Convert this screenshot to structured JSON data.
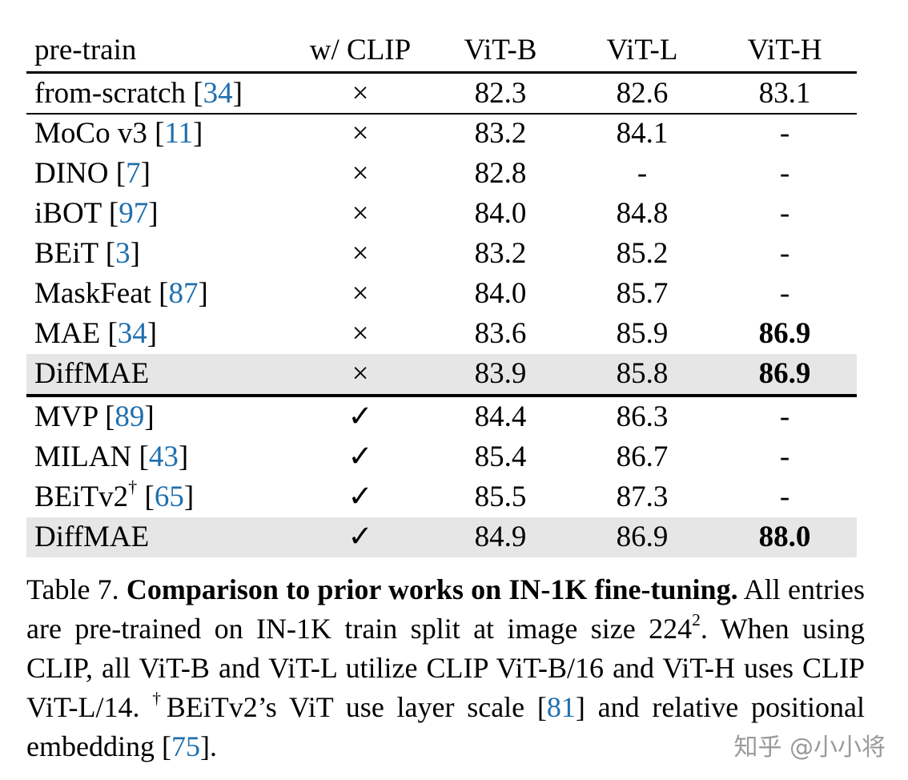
{
  "table": {
    "header": [
      "pre-train",
      "w/ CLIP",
      "ViT-B",
      "ViT-L",
      "ViT-H"
    ],
    "rows": [
      {
        "cells": [
          [
            {
              "text": "from-scratch ["
            },
            {
              "text": "34",
              "style": "cite"
            },
            {
              "text": "]"
            }
          ],
          [
            {
              "text": "×"
            }
          ],
          [
            {
              "text": "82.3"
            }
          ],
          [
            {
              "text": "82.6"
            }
          ],
          [
            {
              "text": "83.1"
            }
          ]
        ],
        "shaded": false,
        "rule_below": "thin"
      },
      {
        "cells": [
          [
            {
              "text": "MoCo v3 ["
            },
            {
              "text": "11",
              "style": "cite"
            },
            {
              "text": "]"
            }
          ],
          [
            {
              "text": "×"
            }
          ],
          [
            {
              "text": "83.2"
            }
          ],
          [
            {
              "text": "84.1"
            }
          ],
          [
            {
              "text": "-"
            }
          ]
        ],
        "shaded": false,
        "rule_below": "none"
      },
      {
        "cells": [
          [
            {
              "text": "DINO ["
            },
            {
              "text": "7",
              "style": "cite"
            },
            {
              "text": "]"
            }
          ],
          [
            {
              "text": "×"
            }
          ],
          [
            {
              "text": "82.8"
            }
          ],
          [
            {
              "text": "-"
            }
          ],
          [
            {
              "text": "-"
            }
          ]
        ],
        "shaded": false,
        "rule_below": "none"
      },
      {
        "cells": [
          [
            {
              "text": "iBOT ["
            },
            {
              "text": "97",
              "style": "cite"
            },
            {
              "text": "]"
            }
          ],
          [
            {
              "text": "×"
            }
          ],
          [
            {
              "text": "84.0"
            }
          ],
          [
            {
              "text": "84.8"
            }
          ],
          [
            {
              "text": "-"
            }
          ]
        ],
        "shaded": false,
        "rule_below": "none"
      },
      {
        "cells": [
          [
            {
              "text": "BEiT ["
            },
            {
              "text": "3",
              "style": "cite"
            },
            {
              "text": "]"
            }
          ],
          [
            {
              "text": "×"
            }
          ],
          [
            {
              "text": "83.2"
            }
          ],
          [
            {
              "text": "85.2"
            }
          ],
          [
            {
              "text": "-"
            }
          ]
        ],
        "shaded": false,
        "rule_below": "none"
      },
      {
        "cells": [
          [
            {
              "text": "MaskFeat ["
            },
            {
              "text": "87",
              "style": "cite"
            },
            {
              "text": "]"
            }
          ],
          [
            {
              "text": "×"
            }
          ],
          [
            {
              "text": "84.0"
            }
          ],
          [
            {
              "text": "85.7"
            }
          ],
          [
            {
              "text": "-"
            }
          ]
        ],
        "shaded": false,
        "rule_below": "none"
      },
      {
        "cells": [
          [
            {
              "text": "MAE ["
            },
            {
              "text": "34",
              "style": "cite"
            },
            {
              "text": "]"
            }
          ],
          [
            {
              "text": "×"
            }
          ],
          [
            {
              "text": "83.6"
            }
          ],
          [
            {
              "text": "85.9"
            }
          ],
          [
            {
              "text": "86.9",
              "style": "bold"
            }
          ]
        ],
        "shaded": false,
        "rule_below": "none"
      },
      {
        "cells": [
          [
            {
              "text": "DiffMAE"
            }
          ],
          [
            {
              "text": "×"
            }
          ],
          [
            {
              "text": "83.9"
            }
          ],
          [
            {
              "text": "85.8"
            }
          ],
          [
            {
              "text": "86.9",
              "style": "bold"
            }
          ]
        ],
        "shaded": true,
        "rule_below": "thick"
      },
      {
        "cells": [
          [
            {
              "text": "MVP ["
            },
            {
              "text": "89",
              "style": "cite"
            },
            {
              "text": "]"
            }
          ],
          [
            {
              "text": "✓"
            }
          ],
          [
            {
              "text": "84.4"
            }
          ],
          [
            {
              "text": "86.3"
            }
          ],
          [
            {
              "text": "-"
            }
          ]
        ],
        "shaded": false,
        "rule_below": "none"
      },
      {
        "cells": [
          [
            {
              "text": "MILAN ["
            },
            {
              "text": "43",
              "style": "cite"
            },
            {
              "text": "]"
            }
          ],
          [
            {
              "text": "✓"
            }
          ],
          [
            {
              "text": "85.4"
            }
          ],
          [
            {
              "text": "86.7"
            }
          ],
          [
            {
              "text": "-"
            }
          ]
        ],
        "shaded": false,
        "rule_below": "none"
      },
      {
        "cells": [
          [
            {
              "text": "BEiTv2"
            },
            {
              "text": "†",
              "style": "sup"
            },
            {
              "text": " ["
            },
            {
              "text": "65",
              "style": "cite"
            },
            {
              "text": "]"
            }
          ],
          [
            {
              "text": "✓"
            }
          ],
          [
            {
              "text": "85.5"
            }
          ],
          [
            {
              "text": "87.3"
            }
          ],
          [
            {
              "text": "-"
            }
          ]
        ],
        "shaded": false,
        "rule_below": "none"
      },
      {
        "cells": [
          [
            {
              "text": "DiffMAE"
            }
          ],
          [
            {
              "text": "✓"
            }
          ],
          [
            {
              "text": "84.9"
            }
          ],
          [
            {
              "text": "86.9"
            }
          ],
          [
            {
              "text": "88.0",
              "style": "bold"
            }
          ]
        ],
        "shaded": true,
        "rule_below": "none"
      }
    ]
  },
  "caption": [
    {
      "text": "Table 7. "
    },
    {
      "text": "Comparison to prior works on IN-1K fine-tuning.",
      "style": "bold"
    },
    {
      "text": " All entries are pre-trained on IN-1K train split at image size 224"
    },
    {
      "text": "2",
      "style": "sup"
    },
    {
      "text": ". When using CLIP, all ViT-B and ViT-L utilize CLIP ViT-B/16 and ViT-H uses CLIP ViT-L/14. "
    },
    {
      "text": "†",
      "style": "sup"
    },
    {
      "text": "BEiTv2’s ViT use layer scale ["
    },
    {
      "text": "81",
      "style": "cite"
    },
    {
      "text": "] and relative positional embedding ["
    },
    {
      "text": "75",
      "style": "cite"
    },
    {
      "text": "]."
    }
  ],
  "watermark": "知乎 @小小将"
}
